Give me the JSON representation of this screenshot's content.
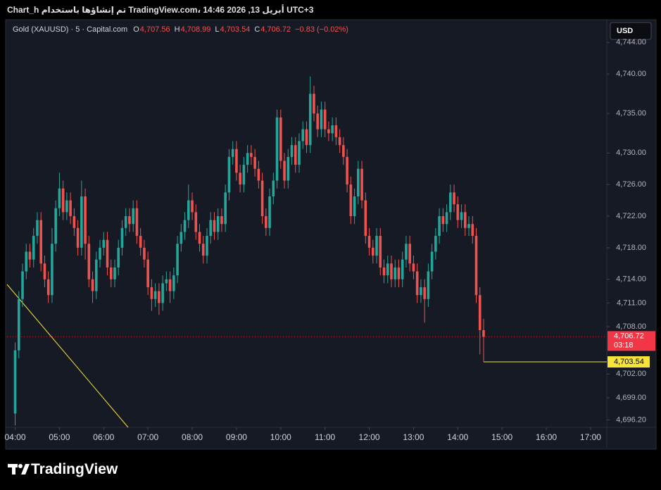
{
  "header": {
    "caption": "Chart_h تم إنشاؤها باستخدام TradingView.com، 14:46 2026 ,13 أبريل UTC+3"
  },
  "chart_data": {
    "type": "candlestick",
    "title": "Gold (XAUUSD) · 5 · Capital.com",
    "ohlc_labels": [
      {
        "key": "O",
        "label": "4,707.56"
      },
      {
        "key": "H",
        "label": "4,708.99"
      },
      {
        "key": "L",
        "label": "4,703.54"
      },
      {
        "key": "C",
        "label": "4,706.72"
      }
    ],
    "change": "−0.83 (−0.02%)",
    "currency": "USD",
    "up_color": "#26a69a",
    "down_color": "#ef5350",
    "x": [
      "04:00",
      "04:05",
      "04:10",
      "04:15",
      "04:20",
      "04:25",
      "04:30",
      "04:35",
      "04:40",
      "04:45",
      "04:50",
      "04:55",
      "05:00",
      "05:05",
      "05:10",
      "05:15",
      "05:20",
      "05:25",
      "05:30",
      "05:35",
      "05:40",
      "05:45",
      "05:50",
      "05:55",
      "06:00",
      "06:05",
      "06:10",
      "06:15",
      "06:20",
      "06:25",
      "06:30",
      "06:35",
      "06:40",
      "06:45",
      "06:50",
      "06:55",
      "07:00",
      "07:05",
      "07:10",
      "07:15",
      "07:20",
      "07:25",
      "07:30",
      "07:35",
      "07:40",
      "07:45",
      "07:50",
      "07:55",
      "08:00",
      "08:05",
      "08:10",
      "08:15",
      "08:20",
      "08:25",
      "08:30",
      "08:35",
      "08:40",
      "08:45",
      "08:50",
      "08:55",
      "09:00",
      "09:05",
      "09:10",
      "09:15",
      "09:20",
      "09:25",
      "09:30",
      "09:35",
      "09:40",
      "09:45",
      "09:50",
      "09:55",
      "10:00",
      "10:05",
      "10:10",
      "10:15",
      "10:20",
      "10:25",
      "10:30",
      "10:35",
      "10:40",
      "10:45",
      "10:50",
      "10:55",
      "11:00",
      "11:05",
      "11:10",
      "11:15",
      "11:20",
      "11:25",
      "11:30",
      "11:35",
      "11:40",
      "11:45",
      "11:50",
      "11:55",
      "12:00",
      "12:05",
      "12:10",
      "12:15",
      "12:20",
      "12:25",
      "12:30",
      "12:35",
      "12:40",
      "12:45",
      "12:50",
      "12:55",
      "13:00",
      "13:05",
      "13:10",
      "13:15",
      "13:20",
      "13:25",
      "13:30",
      "13:35",
      "13:40",
      "13:45",
      "13:50",
      "13:55",
      "14:00",
      "14:05",
      "14:10",
      "14:15",
      "14:20",
      "14:25",
      "14:30",
      "14:35"
    ],
    "open": [
      4697.0,
      4705.0,
      4711.5,
      4715.0,
      4717.5,
      4716.5,
      4719.5,
      4721.5,
      4716.0,
      4714.0,
      4712.0,
      4718.5,
      4723.0,
      4725.5,
      4722.5,
      4724.0,
      4722.0,
      4720.5,
      4718.0,
      4724.5,
      4718.5,
      4714.0,
      4712.5,
      4716.5,
      4718.0,
      4719.0,
      4715.5,
      4714.0,
      4715.5,
      4718.0,
      4720.5,
      4722.0,
      4721.0,
      4723.0,
      4719.5,
      4718.0,
      4716.5,
      4713.0,
      4711.5,
      4712.5,
      4711.0,
      4713.5,
      4714.0,
      4712.5,
      4714.5,
      4718.5,
      4720.0,
      4721.5,
      4724.0,
      4722.5,
      4720.0,
      4718.5,
      4717.0,
      4719.5,
      4721.5,
      4720.0,
      4722.0,
      4721.0,
      4725.0,
      4729.5,
      4730.5,
      4727.5,
      4726.0,
      4728.5,
      4730.0,
      4729.5,
      4728.0,
      4726.5,
      4722.0,
      4720.5,
      4724.5,
      4726.5,
      4734.5,
      4729.0,
      4726.5,
      4729.5,
      4731.0,
      4728.5,
      4731.5,
      4733.0,
      4731.0,
      4737.5,
      4735.0,
      4733.0,
      4735.5,
      4733.0,
      4732.5,
      4733.5,
      4732.0,
      4731.0,
      4729.5,
      4726.0,
      4722.0,
      4724.5,
      4728.0,
      4724.0,
      4719.5,
      4718.0,
      4717.0,
      4719.5,
      4715.5,
      4714.5,
      4716.0,
      4714.0,
      4715.5,
      4714.0,
      4716.5,
      4718.5,
      4716.0,
      4715.0,
      4712.0,
      4713.0,
      4711.5,
      4715.0,
      4717.5,
      4719.5,
      4722.0,
      4721.0,
      4722.5,
      4725.0,
      4723.5,
      4721.5,
      4722.5,
      4720.5,
      4721.0,
      4719.5,
      4712.0,
      4707.56
    ],
    "high": [
      4706,
      4712.5,
      4716,
      4718.5,
      4718.5,
      4720.5,
      4722.5,
      4722.5,
      4717,
      4715,
      4720.5,
      4724,
      4727.5,
      4726.5,
      4725,
      4725,
      4723,
      4721.5,
      4726.5,
      4725.5,
      4719.5,
      4715,
      4717.5,
      4719,
      4720,
      4720,
      4716.5,
      4716.5,
      4719,
      4721.5,
      4723,
      4723,
      4724,
      4724,
      4720.5,
      4719,
      4717.5,
      4714,
      4713.5,
      4713.5,
      4714.5,
      4715,
      4715,
      4715.5,
      4719.5,
      4721,
      4722.5,
      4726,
      4725,
      4723.5,
      4721,
      4719.5,
      4720.5,
      4722.5,
      4722.5,
      4723,
      4723,
      4726,
      4730.5,
      4731.5,
      4731.5,
      4728.5,
      4729.5,
      4731,
      4731,
      4730.5,
      4729,
      4727.5,
      4723,
      4725.5,
      4727.5,
      4735.5,
      4735.5,
      4730,
      4730.5,
      4732,
      4732,
      4732.5,
      4734,
      4734,
      4739.7,
      4738.5,
      4736,
      4736.5,
      4736.5,
      4734,
      4734.5,
      4734.5,
      4733,
      4732,
      4730.5,
      4727,
      4725.5,
      4729,
      4729,
      4725,
      4720.5,
      4719,
      4720.5,
      4720.5,
      4716.5,
      4717,
      4717,
      4716.5,
      4716.5,
      4717.5,
      4719.5,
      4719.5,
      4717,
      4716,
      4714,
      4714,
      4716,
      4718.5,
      4720.5,
      4723,
      4723,
      4723.5,
      4726,
      4726,
      4724.5,
      4723.5,
      4723.5,
      4722,
      4722,
      4720.5,
      4713,
      4708.99
    ],
    "low": [
      4695.5,
      4704,
      4710.5,
      4714,
      4715.5,
      4715.5,
      4718.5,
      4715,
      4713,
      4711,
      4711,
      4717.5,
      4722,
      4721.5,
      4721.5,
      4721,
      4719.5,
      4717,
      4717,
      4716.5,
      4713,
      4711,
      4711.5,
      4715.5,
      4717,
      4714.5,
      4713,
      4713,
      4714.5,
      4717,
      4719.5,
      4720,
      4720,
      4718.5,
      4717,
      4715.5,
      4712,
      4710,
      4710.5,
      4709.5,
      4710,
      4712.5,
      4711,
      4711.5,
      4713.5,
      4717.5,
      4719,
      4720.5,
      4721.5,
      4719,
      4717.5,
      4716,
      4716,
      4718.5,
      4719,
      4719,
      4720,
      4720,
      4724,
      4728.5,
      4726.5,
      4725,
      4725,
      4727.5,
      4728.5,
      4727,
      4725.5,
      4721,
      4719.5,
      4719.5,
      4723.5,
      4725.5,
      4728,
      4725.5,
      4725.5,
      4728.5,
      4727.5,
      4727.5,
      4730.5,
      4730,
      4730,
      4734,
      4732,
      4732,
      4732,
      4731.5,
      4731.5,
      4731,
      4730,
      4728.5,
      4725,
      4721,
      4721,
      4723.5,
      4723,
      4718.5,
      4717,
      4716,
      4716,
      4714.5,
      4713.5,
      4713.5,
      4713,
      4713,
      4713,
      4713,
      4715.5,
      4715,
      4714,
      4711,
      4711,
      4708.5,
      4710.5,
      4714,
      4716.5,
      4718.5,
      4720,
      4720,
      4721.5,
      4722.5,
      4720.5,
      4720.5,
      4719.5,
      4719.5,
      4718.5,
      4711,
      4704.5,
      4703.54
    ],
    "close": [
      4705.0,
      4711.5,
      4715.0,
      4717.5,
      4716.5,
      4719.5,
      4721.5,
      4716.0,
      4714.0,
      4712.0,
      4718.5,
      4723.0,
      4725.5,
      4722.5,
      4724.0,
      4722.0,
      4720.5,
      4718.0,
      4724.5,
      4718.5,
      4714.0,
      4712.5,
      4716.5,
      4718.0,
      4719.0,
      4715.5,
      4714.0,
      4715.5,
      4718.0,
      4720.5,
      4722.0,
      4721.0,
      4723.0,
      4719.5,
      4718.0,
      4716.5,
      4713.0,
      4711.5,
      4712.5,
      4711.0,
      4713.5,
      4714.0,
      4712.5,
      4714.5,
      4718.5,
      4720.0,
      4721.5,
      4724.0,
      4722.5,
      4720.0,
      4718.5,
      4717.0,
      4719.5,
      4721.5,
      4720.0,
      4722.0,
      4721.0,
      4725.0,
      4729.5,
      4730.5,
      4727.5,
      4726.0,
      4728.5,
      4730.0,
      4729.5,
      4728.0,
      4726.5,
      4722.0,
      4720.5,
      4724.5,
      4726.5,
      4734.5,
      4729.0,
      4726.5,
      4729.5,
      4731.0,
      4728.5,
      4731.5,
      4733.0,
      4731.0,
      4737.5,
      4735.0,
      4733.0,
      4735.5,
      4733.0,
      4732.5,
      4733.5,
      4732.0,
      4731.0,
      4729.5,
      4726.0,
      4722.0,
      4724.5,
      4728.0,
      4724.0,
      4719.5,
      4718.0,
      4717.0,
      4719.5,
      4715.5,
      4714.5,
      4716.0,
      4714.0,
      4715.5,
      4714.0,
      4716.5,
      4718.5,
      4716.0,
      4715.0,
      4712.0,
      4713.0,
      4711.5,
      4715.0,
      4717.5,
      4719.5,
      4722.0,
      4721.0,
      4722.5,
      4725.0,
      4723.5,
      4721.5,
      4722.5,
      4720.5,
      4721.0,
      4719.5,
      4712.0,
      4707.56,
      4706.72
    ],
    "xlim": [
      "03:49",
      "17:22"
    ],
    "xticks": [
      "04:00",
      "05:00",
      "06:00",
      "07:00",
      "08:00",
      "09:00",
      "10:00",
      "11:00",
      "12:00",
      "13:00",
      "14:00",
      "15:00",
      "16:00",
      "17:00"
    ],
    "ylim": [
      4695.25,
      4746.7
    ],
    "yticks": [
      {
        "value": 4744,
        "label": "4,744.00"
      },
      {
        "value": 4740,
        "label": "4,740.00"
      },
      {
        "value": 4735,
        "label": "4,735.00"
      },
      {
        "value": 4730,
        "label": "4,730.00"
      },
      {
        "value": 4726,
        "label": "4,726.00"
      },
      {
        "value": 4722,
        "label": "4,722.00"
      },
      {
        "value": 4718,
        "label": "4,718.00"
      },
      {
        "value": 4714,
        "label": "4,714.00"
      },
      {
        "value": 4711,
        "label": "4,711.00"
      },
      {
        "value": 4708,
        "label": "4,708.00"
      },
      {
        "value": 4702,
        "label": "4,702.00"
      },
      {
        "value": 4699,
        "label": "4,699.00"
      },
      {
        "value": 4696.2,
        "label": "4,696.20"
      }
    ],
    "last_price": {
      "value": 4706.72,
      "label": "4,706.72",
      "countdown": "03:18",
      "color": "#f23645"
    },
    "low_line": {
      "value": 4703.54,
      "label": "4,703.54",
      "color": "#f7e43a"
    }
  },
  "footer": {
    "brand": "TradingView"
  }
}
